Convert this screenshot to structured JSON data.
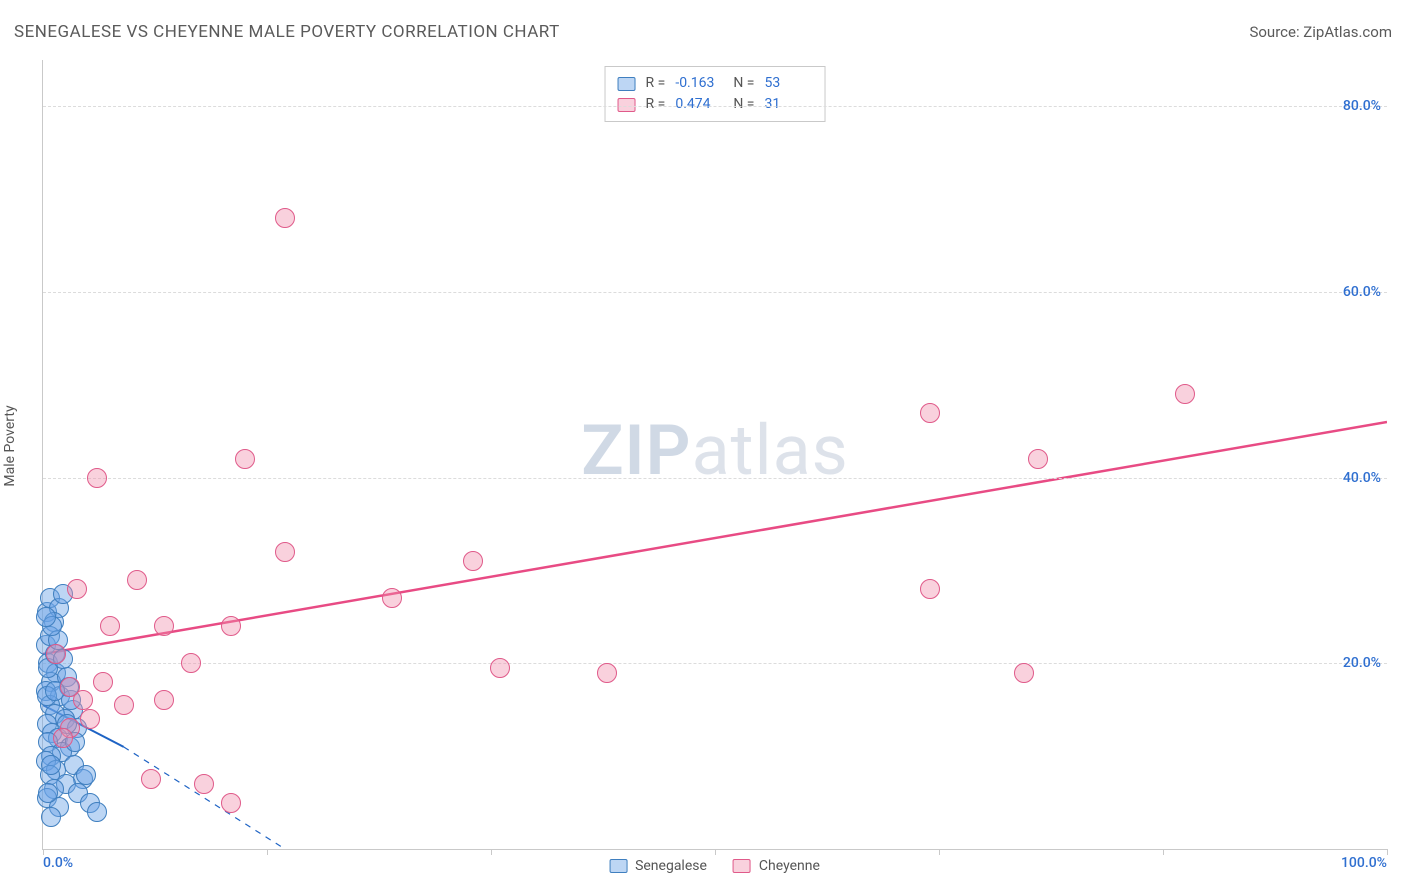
{
  "title": "SENEGALESE VS CHEYENNE MALE POVERTY CORRELATION CHART",
  "source": "Source: ZipAtlas.com",
  "watermark": {
    "strong": "ZIP",
    "rest": "atlas"
  },
  "chart": {
    "type": "scatter",
    "ylabel": "Male Poverty",
    "xlim": [
      0,
      100
    ],
    "ylim": [
      0,
      85
    ],
    "xtick_positions": [
      0,
      16.67,
      33.33,
      50,
      66.67,
      83.33,
      100
    ],
    "xtick_labeled": {
      "0": "0.0%",
      "100": "100.0%"
    },
    "ytick_labels": [
      {
        "v": 20,
        "t": "20.0%"
      },
      {
        "v": 40,
        "t": "40.0%"
      },
      {
        "v": 60,
        "t": "60.0%"
      },
      {
        "v": 80,
        "t": "80.0%"
      }
    ],
    "grid_color": "#dcdcdc",
    "axis_color": "#c9c9c9",
    "tick_label_color": "#2f6fd0",
    "background_color": "#ffffff",
    "tick_fontsize": 14,
    "marker_radius": 10,
    "marker_stroke_width": 1.5,
    "series": [
      {
        "name": "Senegalese",
        "fill": "rgba(109,163,230,0.45)",
        "stroke": "#3f7fbf",
        "points": [
          [
            0.3,
            25.5
          ],
          [
            0.5,
            27
          ],
          [
            1.2,
            26
          ],
          [
            0.8,
            24.5
          ],
          [
            0.2,
            22
          ],
          [
            1.5,
            27.5
          ],
          [
            0.4,
            20
          ],
          [
            1.0,
            19
          ],
          [
            0.6,
            18
          ],
          [
            1.8,
            18.5
          ],
          [
            0.2,
            17
          ],
          [
            1.3,
            16.5
          ],
          [
            0.5,
            15.5
          ],
          [
            2.2,
            15
          ],
          [
            0.9,
            14.5
          ],
          [
            1.6,
            14
          ],
          [
            0.3,
            13.5
          ],
          [
            2.5,
            13
          ],
          [
            0.7,
            12.5
          ],
          [
            1.1,
            12
          ],
          [
            0.4,
            11.5
          ],
          [
            2.0,
            11
          ],
          [
            1.4,
            10.5
          ],
          [
            0.6,
            10
          ],
          [
            0.2,
            9.5
          ],
          [
            2.3,
            9
          ],
          [
            1.0,
            8.5
          ],
          [
            0.5,
            8
          ],
          [
            3.0,
            7.5
          ],
          [
            1.7,
            7
          ],
          [
            0.8,
            6.5
          ],
          [
            2.6,
            6
          ],
          [
            0.3,
            5.5
          ],
          [
            3.5,
            5
          ],
          [
            1.2,
            4.5
          ],
          [
            4.0,
            4
          ],
          [
            0.6,
            3.5
          ],
          [
            2.1,
            16
          ],
          [
            1.9,
            17.5
          ],
          [
            0.4,
            19.5
          ],
          [
            3.2,
            8
          ],
          [
            0.9,
            21
          ],
          [
            1.5,
            20.5
          ],
          [
            0.5,
            23
          ],
          [
            1.1,
            22.5
          ],
          [
            0.3,
            16.5
          ],
          [
            2.4,
            11.5
          ],
          [
            0.7,
            24
          ],
          [
            0.2,
            25
          ],
          [
            1.8,
            13.5
          ],
          [
            0.6,
            9
          ],
          [
            0.9,
            17
          ],
          [
            0.4,
            6
          ]
        ],
        "regression": {
          "color": "#1e63c4",
          "width": 2,
          "solid_to_x": 6,
          "dash_to_x": 18,
          "y_at_x0": 15.5,
          "y_at_xsolid": 11,
          "y_at_xdash": 0
        },
        "R": "-0.163",
        "N": "53"
      },
      {
        "name": "Cheyenne",
        "fill": "rgba(240,140,170,0.40)",
        "stroke": "#e05a8a",
        "points": [
          [
            4,
            40
          ],
          [
            18,
            68
          ],
          [
            15,
            42
          ],
          [
            2.5,
            28
          ],
          [
            7,
            29
          ],
          [
            9,
            24
          ],
          [
            5,
            24
          ],
          [
            14,
            24
          ],
          [
            18,
            32
          ],
          [
            32,
            31
          ],
          [
            26,
            27
          ],
          [
            42,
            19
          ],
          [
            34,
            19.5
          ],
          [
            11,
            20
          ],
          [
            6,
            15.5
          ],
          [
            9,
            16
          ],
          [
            3,
            16
          ],
          [
            3.5,
            14
          ],
          [
            2,
            13
          ],
          [
            12,
            7
          ],
          [
            8,
            7.5
          ],
          [
            14,
            5
          ],
          [
            66,
            28
          ],
          [
            66,
            47
          ],
          [
            74,
            42
          ],
          [
            85,
            49
          ],
          [
            73,
            19
          ],
          [
            1,
            21
          ],
          [
            2,
            17.5
          ],
          [
            4.5,
            18
          ],
          [
            1.5,
            12
          ]
        ],
        "regression": {
          "color": "#e84b84",
          "width": 2.5,
          "solid_to_x": 100,
          "y_at_x0": 21,
          "y_at_xsolid": 46
        },
        "R": "0.474",
        "N": "31"
      }
    ]
  },
  "legend_bottom": [
    {
      "label": "Senegalese",
      "fill": "rgba(109,163,230,0.45)",
      "stroke": "#3f7fbf"
    },
    {
      "label": "Cheyenne",
      "fill": "rgba(240,140,170,0.40)",
      "stroke": "#e05a8a"
    }
  ]
}
